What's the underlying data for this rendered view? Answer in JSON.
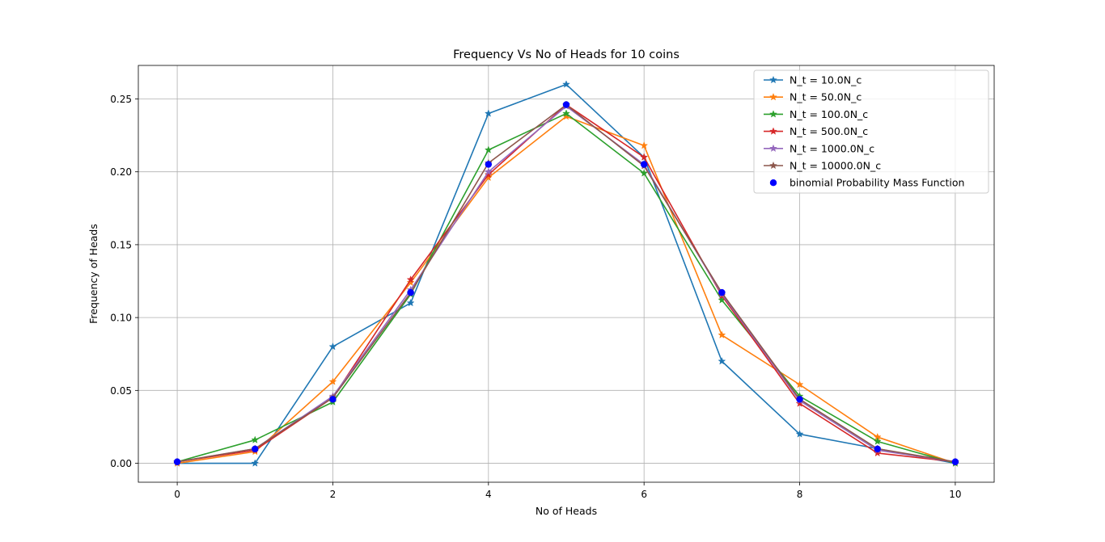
{
  "chart_data": {
    "type": "line",
    "title": "Frequency Vs No of Heads for 10 coins",
    "xlabel": "No of Heads",
    "ylabel": "Frequency of Heads",
    "xlim": [
      -0.5,
      10.5
    ],
    "ylim": [
      -0.013,
      0.273
    ],
    "xticks": [
      0,
      2,
      4,
      6,
      8,
      10
    ],
    "xtick_labels": [
      "0",
      "2",
      "4",
      "6",
      "8",
      "10"
    ],
    "yticks": [
      0.0,
      0.05,
      0.1,
      0.15,
      0.2,
      0.25
    ],
    "ytick_labels": [
      "0.00",
      "0.05",
      "0.10",
      "0.15",
      "0.20",
      "0.25"
    ],
    "grid": true,
    "legend_position": "top-right",
    "x": [
      0,
      1,
      2,
      3,
      4,
      5,
      6,
      7,
      8,
      9,
      10
    ],
    "series": [
      {
        "name": "N_t = 10.0N_c",
        "color": "#1f77b4",
        "marker": "star",
        "values": [
          0.0,
          0.0,
          0.08,
          0.11,
          0.24,
          0.26,
          0.21,
          0.07,
          0.02,
          0.01,
          0.0
        ]
      },
      {
        "name": "N_t = 50.0N_c",
        "color": "#ff7f0e",
        "marker": "star",
        "values": [
          0.0,
          0.008,
          0.056,
          0.124,
          0.196,
          0.238,
          0.218,
          0.088,
          0.054,
          0.018,
          0.0
        ]
      },
      {
        "name": "N_t = 100.0N_c",
        "color": "#2ca02c",
        "marker": "star",
        "values": [
          0.001,
          0.016,
          0.042,
          0.116,
          0.215,
          0.24,
          0.199,
          0.112,
          0.046,
          0.015,
          0.0
        ]
      },
      {
        "name": "N_t = 500.0N_c",
        "color": "#d62728",
        "marker": "star",
        "values": [
          0.001,
          0.009,
          0.045,
          0.126,
          0.198,
          0.246,
          0.21,
          0.115,
          0.041,
          0.007,
          0.001
        ]
      },
      {
        "name": "N_t = 1000.0N_c",
        "color": "#9467bd",
        "marker": "star",
        "values": [
          0.001,
          0.01,
          0.046,
          0.119,
          0.2,
          0.245,
          0.205,
          0.116,
          0.043,
          0.009,
          0.001
        ]
      },
      {
        "name": "N_t = 10000.0N_c",
        "color": "#8c564b",
        "marker": "star",
        "values": [
          0.001,
          0.01,
          0.045,
          0.117,
          0.206,
          0.246,
          0.204,
          0.117,
          0.044,
          0.01,
          0.001
        ]
      }
    ],
    "reference": {
      "name": "binomial Probability Mass Function",
      "color": "#0000ff",
      "marker": "circle",
      "values": [
        0.001,
        0.0098,
        0.0439,
        0.1172,
        0.2051,
        0.2461,
        0.2051,
        0.1172,
        0.0439,
        0.0098,
        0.001
      ]
    }
  }
}
